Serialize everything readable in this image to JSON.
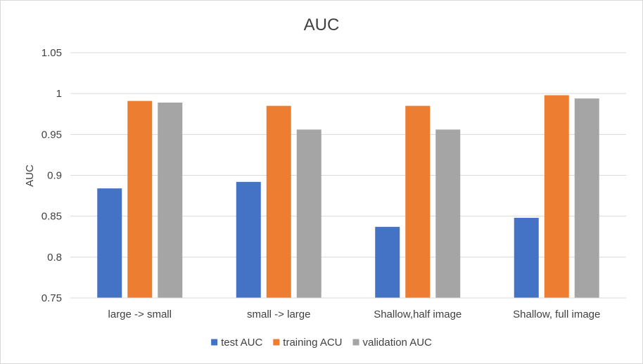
{
  "chart_data": {
    "type": "bar",
    "title": "AUC",
    "xlabel": "",
    "ylabel": "AUC",
    "ylim": [
      0.75,
      1.05
    ],
    "yticks": [
      0.75,
      0.8,
      0.85,
      0.9,
      0.95,
      1,
      1.05
    ],
    "ytick_labels": [
      "0.75",
      "0.8",
      "0.85",
      "0.9",
      "0.95",
      "1",
      "1.05"
    ],
    "grid": true,
    "legend_position": "bottom",
    "categories": [
      "large -> small",
      "small -> large",
      "Shallow,half image",
      "Shallow, full image"
    ],
    "series": [
      {
        "name": "test AUC",
        "color": "#4472C4",
        "values": [
          0.884,
          0.892,
          0.837,
          0.848
        ]
      },
      {
        "name": "training ACU",
        "color": "#ED7D31",
        "values": [
          0.991,
          0.985,
          0.985,
          0.998
        ]
      },
      {
        "name": "validation AUC",
        "color": "#A5A5A5",
        "values": [
          0.989,
          0.956,
          0.956,
          0.994
        ]
      }
    ]
  }
}
